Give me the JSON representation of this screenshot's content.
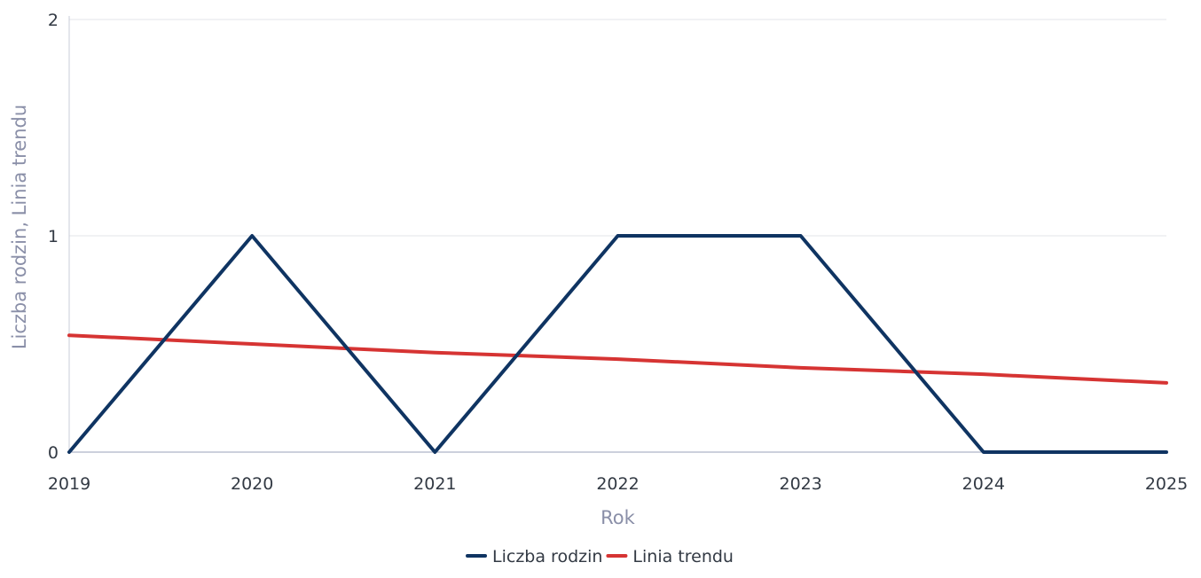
{
  "chart_data": {
    "type": "line",
    "title": "",
    "xlabel": "Rok",
    "ylabel": "Liczba rodzin, Linia trendu",
    "x": [
      2019,
      2020,
      2021,
      2022,
      2023,
      2024,
      2025
    ],
    "x_tick_labels": [
      "2019",
      "2020",
      "2021",
      "2022",
      "2023",
      "2024",
      "2025"
    ],
    "y_tick_labels": [
      "0",
      "1",
      "2"
    ],
    "ylim": [
      0,
      2
    ],
    "grid": true,
    "legend_position": "bottom-center",
    "series": [
      {
        "name": "Liczba rodzin",
        "color": "#0f3462",
        "values": [
          0,
          1,
          0,
          1,
          1,
          0,
          0
        ]
      },
      {
        "name": "Linia trendu",
        "color": "#d63433",
        "values": [
          0.54,
          0.5,
          0.46,
          0.43,
          0.39,
          0.36,
          0.32
        ]
      }
    ]
  }
}
